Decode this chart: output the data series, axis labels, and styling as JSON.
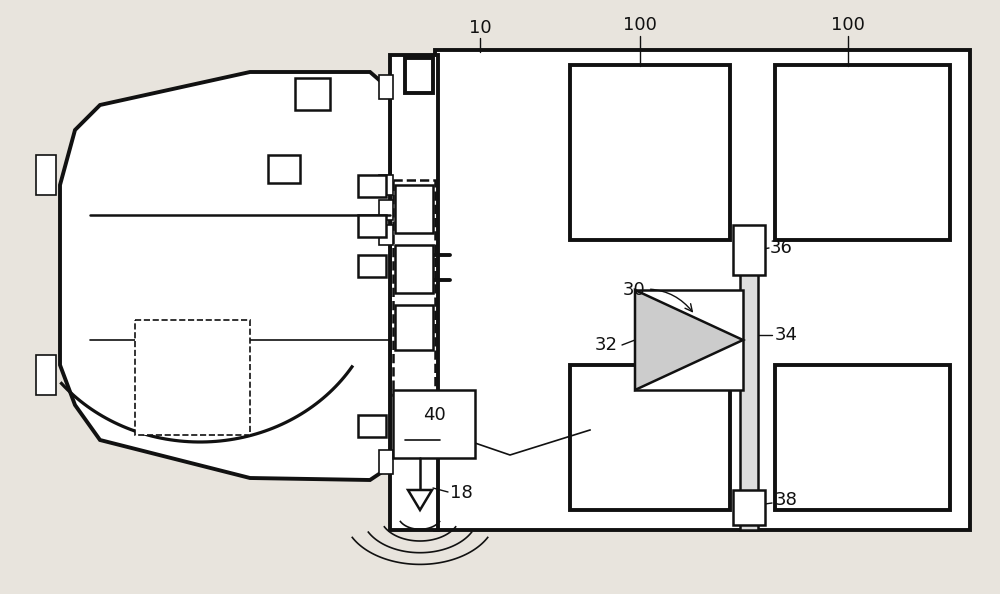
{
  "bg_color": "#e8e4dd",
  "lc": "#111111",
  "lw": 1.8,
  "lwt": 2.8,
  "lwn": 1.2,
  "fs": 13,
  "figsize": [
    10.0,
    5.94
  ],
  "dpi": 100
}
